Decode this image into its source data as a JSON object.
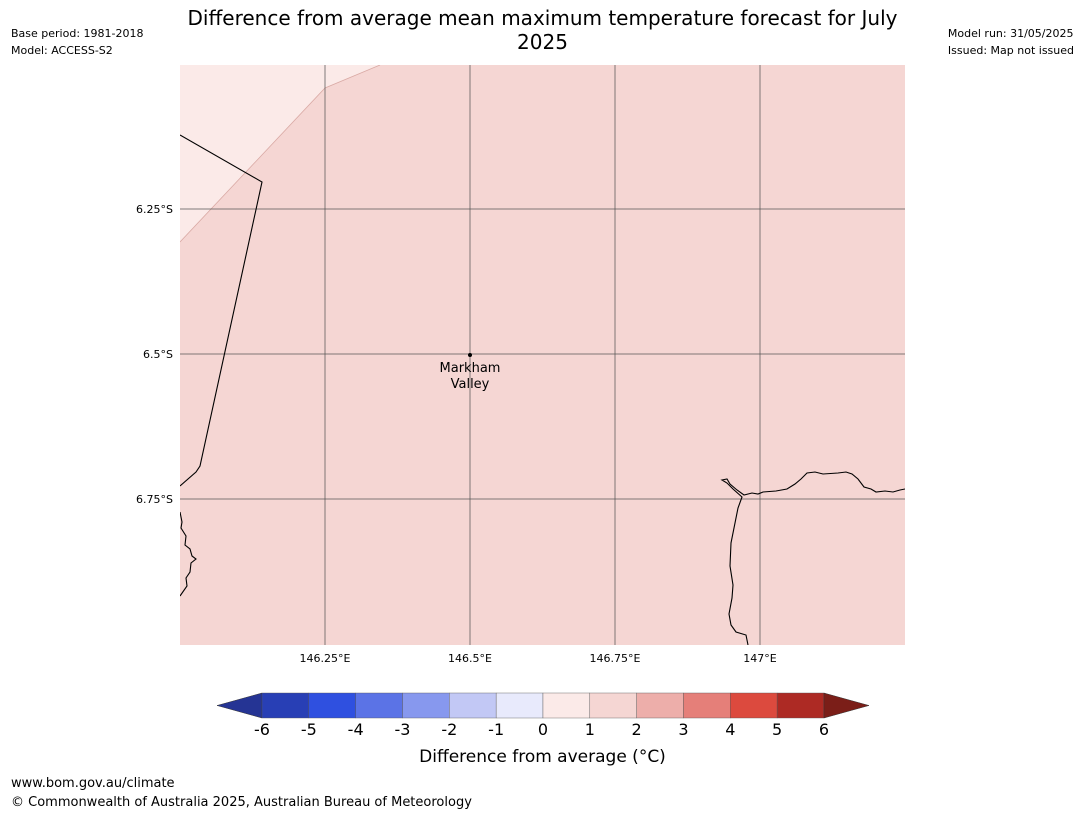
{
  "title": "Difference from average mean maximum temperature forecast for July 2025",
  "meta_left": {
    "base_period": "Base period: 1981-2018",
    "model": "Model: ACCESS-S2"
  },
  "meta_right": {
    "model_run": "Model run: 31/05/2025",
    "issued": "Issued: Map not issued"
  },
  "map": {
    "lat_labels": [
      "6.25°S",
      "6.5°S",
      "6.75°S"
    ],
    "lon_labels": [
      "146.25°E",
      "146.5°E",
      "146.75°E",
      "147°E"
    ],
    "place": {
      "name_line1": "Markham",
      "name_line2": "Valley",
      "lat": -6.5,
      "lon": 146.5
    },
    "fill_colors": {
      "main": "#f5d6d3",
      "corner": "#fbeae8"
    },
    "dominant_category": "1 to 2"
  },
  "colorbar": {
    "label": "Difference from average (",
    "label_unit": "°C)",
    "ticks": [
      "-6",
      "-5",
      "-4",
      "-3",
      "-2",
      "-1",
      "0",
      "1",
      "2",
      "3",
      "4",
      "5",
      "6"
    ],
    "colors": [
      "#253494",
      "#283fb5",
      "#2f50e0",
      "#5b73e6",
      "#8798ee",
      "#c2c8f5",
      "#e8eafc",
      "#fbeae8",
      "#f5d6d3",
      "#edaeaa",
      "#e57f79",
      "#dc4a3e",
      "#ad2a24",
      "#7b1e18"
    ]
  },
  "footer": {
    "url": "www.bom.gov.au/climate",
    "copyright": "© Commonwealth of Australia 2025, Australian Bureau of Meteorology"
  }
}
